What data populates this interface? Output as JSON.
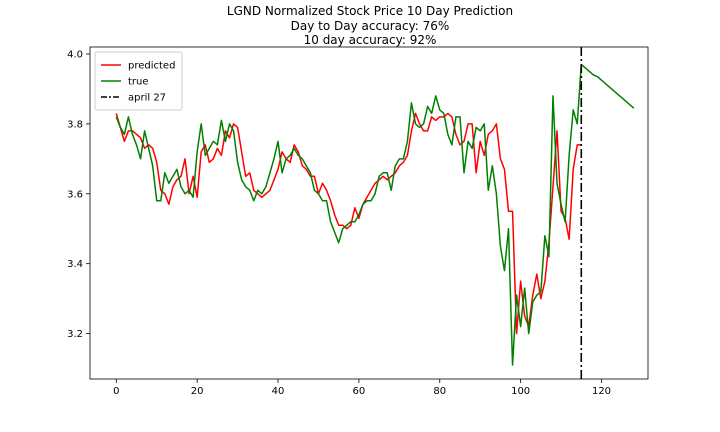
{
  "chart_data": {
    "type": "line",
    "title": "LGND Normalized Stock Price 10 Day Prediction",
    "subtitle_lines": [
      "Day to Day accuracy: 76%",
      "10 day accuracy: 92%"
    ],
    "xlabel": "",
    "ylabel": "",
    "xlim": [
      -6.5,
      131.5
    ],
    "ylim": [
      3.07,
      4.02
    ],
    "x_ticks": [
      0,
      20,
      40,
      60,
      80,
      100,
      120
    ],
    "y_ticks": [
      3.2,
      3.4,
      3.6,
      3.8,
      4.0
    ],
    "y_tick_labels": [
      "3.2",
      "3.4",
      "3.6",
      "3.8",
      "4.0"
    ],
    "grid": false,
    "legend_position": "top-left",
    "colors": {
      "predicted": "#ff0000",
      "true": "#008000",
      "marker": "#000000"
    },
    "series": [
      {
        "name": "predicted",
        "style": "solid",
        "x_start": 0,
        "values": [
          3.83,
          3.79,
          3.75,
          3.78,
          3.78,
          3.77,
          3.76,
          3.73,
          3.74,
          3.73,
          3.69,
          3.61,
          3.6,
          3.57,
          3.62,
          3.64,
          3.65,
          3.7,
          3.6,
          3.65,
          3.59,
          3.72,
          3.74,
          3.69,
          3.7,
          3.73,
          3.71,
          3.78,
          3.76,
          3.8,
          3.79,
          3.72,
          3.65,
          3.66,
          3.61,
          3.6,
          3.59,
          3.6,
          3.61,
          3.64,
          3.67,
          3.72,
          3.7,
          3.69,
          3.74,
          3.72,
          3.68,
          3.67,
          3.65,
          3.65,
          3.6,
          3.63,
          3.61,
          3.58,
          3.54,
          3.51,
          3.51,
          3.5,
          3.51,
          3.56,
          3.53,
          3.57,
          3.59,
          3.61,
          3.63,
          3.64,
          3.65,
          3.64,
          3.65,
          3.66,
          3.68,
          3.69,
          3.71,
          3.78,
          3.83,
          3.8,
          3.78,
          3.78,
          3.82,
          3.81,
          3.82,
          3.82,
          3.83,
          3.82,
          3.77,
          3.74,
          3.75,
          3.8,
          3.8,
          3.66,
          3.75,
          3.71,
          3.77,
          3.78,
          3.8,
          3.7,
          3.67,
          3.55,
          3.55,
          3.2,
          3.35,
          3.25,
          3.22,
          3.31,
          3.37,
          3.3,
          3.35,
          3.46,
          3.62,
          3.78,
          3.55,
          3.53,
          3.47,
          3.67,
          3.74,
          3.74
        ]
      },
      {
        "name": "true",
        "style": "solid",
        "x_start": 0,
        "values": [
          3.82,
          3.79,
          3.77,
          3.82,
          3.77,
          3.74,
          3.7,
          3.78,
          3.73,
          3.68,
          3.58,
          3.58,
          3.66,
          3.63,
          3.65,
          3.67,
          3.62,
          3.6,
          3.61,
          3.59,
          3.72,
          3.8,
          3.71,
          3.73,
          3.75,
          3.74,
          3.81,
          3.75,
          3.8,
          3.78,
          3.69,
          3.64,
          3.62,
          3.61,
          3.58,
          3.61,
          3.6,
          3.62,
          3.66,
          3.7,
          3.75,
          3.66,
          3.7,
          3.71,
          3.73,
          3.71,
          3.7,
          3.68,
          3.66,
          3.61,
          3.6,
          3.58,
          3.58,
          3.52,
          3.49,
          3.46,
          3.5,
          3.51,
          3.52,
          3.52,
          3.54,
          3.57,
          3.58,
          3.58,
          3.6,
          3.65,
          3.66,
          3.66,
          3.61,
          3.68,
          3.7,
          3.7,
          3.75,
          3.86,
          3.8,
          3.79,
          3.8,
          3.85,
          3.83,
          3.88,
          3.84,
          3.83,
          3.77,
          3.74,
          3.82,
          3.82,
          3.66,
          3.75,
          3.73,
          3.79,
          3.78,
          3.8,
          3.61,
          3.68,
          3.6,
          3.45,
          3.38,
          3.5,
          3.11,
          3.31,
          3.22,
          3.33,
          3.2,
          3.29,
          3.31,
          3.32,
          3.48,
          3.42,
          3.88,
          3.63,
          3.57,
          3.52,
          3.71,
          3.84,
          3.8,
          3.97,
          3.96,
          3.95,
          3.94,
          3.935,
          3.925,
          3.915,
          3.905,
          3.895,
          3.885,
          3.875,
          3.865,
          3.855,
          3.845
        ]
      }
    ],
    "vertical_marker": {
      "label": "april 27",
      "x": 115,
      "style": "dashdot"
    },
    "legend": [
      {
        "label": "predicted",
        "color": "#ff0000",
        "style": "solid"
      },
      {
        "label": "true",
        "color": "#008000",
        "style": "solid"
      },
      {
        "label": "april 27",
        "color": "#000000",
        "style": "dashdot"
      }
    ]
  }
}
